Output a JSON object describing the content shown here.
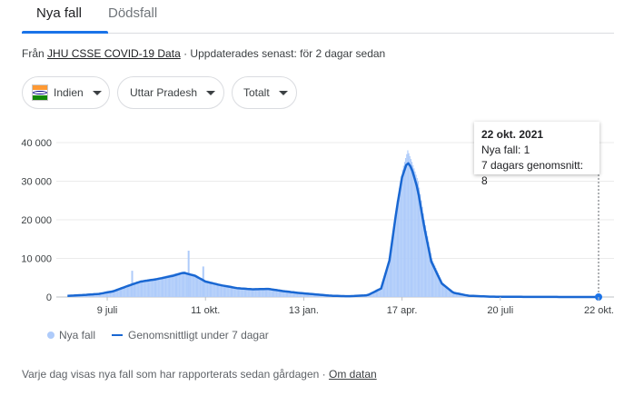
{
  "tabs": {
    "new_cases": "Nya fall",
    "deaths": "Dödsfall"
  },
  "source": {
    "prefix": "Från",
    "link": "JHU CSSE COVID-19 Data",
    "suffix": "· Uppdaterades senast: för 2 dagar sedan"
  },
  "filters": {
    "country": "Indien",
    "state": "Uttar Pradesh",
    "mode": "Totalt"
  },
  "tooltip": {
    "date": "22 okt. 2021",
    "new_cases": "Nya fall: 1",
    "avg": "7 dagars genomsnitt: 8"
  },
  "legend": {
    "bars": "Nya fall",
    "line": "Genomsnittligt under 7 dagar"
  },
  "footer": {
    "text": "Varje dag visas nya fall som har rapporterats sedan gårdagen ·",
    "link": "Om datan"
  },
  "colors": {
    "bars": "#aecbfa",
    "line": "#1967d2",
    "accent": "#1a73e8"
  },
  "chart_data": {
    "type": "bar",
    "x_ticks": [
      "9 juli",
      "11 okt.",
      "13 jan.",
      "17 apr.",
      "20 juli",
      "22 okt."
    ],
    "y_ticks": [
      "0",
      "10 000",
      "20 000",
      "30 000",
      "40 000"
    ],
    "ylim": [
      0,
      40000
    ],
    "series": [
      {
        "name": "Nya fall",
        "type": "bar",
        "points": [
          [
            "2020-06-01",
            300
          ],
          [
            "2020-06-15",
            500
          ],
          [
            "2020-07-01",
            900
          ],
          [
            "2020-07-15",
            1600
          ],
          [
            "2020-07-30",
            3200
          ],
          [
            "2020-08-10",
            4300
          ],
          [
            "2020-08-25",
            4900
          ],
          [
            "2020-09-10",
            6000
          ],
          [
            "2020-09-20",
            6600
          ],
          [
            "2020-10-01",
            5700
          ],
          [
            "2020-10-11",
            4200
          ],
          [
            "2020-10-25",
            3300
          ],
          [
            "2020-11-10",
            2400
          ],
          [
            "2020-11-25",
            2100
          ],
          [
            "2020-12-10",
            2200
          ],
          [
            "2020-12-25",
            1600
          ],
          [
            "2021-01-10",
            1000
          ],
          [
            "2021-01-25",
            700
          ],
          [
            "2021-02-10",
            300
          ],
          [
            "2021-02-25",
            200
          ],
          [
            "2021-03-15",
            500
          ],
          [
            "2021-03-28",
            2500
          ],
          [
            "2021-04-05",
            11000
          ],
          [
            "2021-04-12",
            25000
          ],
          [
            "2021-04-17",
            33000
          ],
          [
            "2021-04-22",
            38000
          ],
          [
            "2021-04-26",
            35000
          ],
          [
            "2021-05-02",
            30000
          ],
          [
            "2021-05-08",
            20000
          ],
          [
            "2021-05-15",
            10000
          ],
          [
            "2021-05-25",
            3800
          ],
          [
            "2021-06-05",
            1200
          ],
          [
            "2021-06-20",
            350
          ],
          [
            "2021-07-10",
            100
          ],
          [
            "2021-08-10",
            40
          ],
          [
            "2021-09-10",
            15
          ],
          [
            "2021-10-22",
            1
          ]
        ],
        "spikes": [
          [
            "2020-08-01",
            6800
          ],
          [
            "2020-09-24",
            12000
          ],
          [
            "2020-10-08",
            7900
          ]
        ]
      },
      {
        "name": "Genomsnittligt under 7 dagar",
        "type": "line",
        "points": [
          [
            "2020-06-01",
            300
          ],
          [
            "2020-06-15",
            500
          ],
          [
            "2020-07-01",
            800
          ],
          [
            "2020-07-15",
            1500
          ],
          [
            "2020-07-30",
            3000
          ],
          [
            "2020-08-10",
            4000
          ],
          [
            "2020-08-25",
            4600
          ],
          [
            "2020-09-10",
            5500
          ],
          [
            "2020-09-20",
            6300
          ],
          [
            "2020-10-01",
            5500
          ],
          [
            "2020-10-11",
            4000
          ],
          [
            "2020-10-25",
            3100
          ],
          [
            "2020-11-10",
            2300
          ],
          [
            "2020-11-25",
            2000
          ],
          [
            "2020-12-10",
            2100
          ],
          [
            "2020-12-25",
            1500
          ],
          [
            "2021-01-10",
            1000
          ],
          [
            "2021-01-25",
            650
          ],
          [
            "2021-02-10",
            300
          ],
          [
            "2021-02-25",
            200
          ],
          [
            "2021-03-15",
            450
          ],
          [
            "2021-03-28",
            2200
          ],
          [
            "2021-04-05",
            9500
          ],
          [
            "2021-04-12",
            23000
          ],
          [
            "2021-04-17",
            31000
          ],
          [
            "2021-04-22",
            35000
          ],
          [
            "2021-04-26",
            33500
          ],
          [
            "2021-05-02",
            28000
          ],
          [
            "2021-05-08",
            18500
          ],
          [
            "2021-05-15",
            9200
          ],
          [
            "2021-05-25",
            3500
          ],
          [
            "2021-06-05",
            1100
          ],
          [
            "2021-06-20",
            320
          ],
          [
            "2021-07-10",
            90
          ],
          [
            "2021-08-10",
            35
          ],
          [
            "2021-09-10",
            12
          ],
          [
            "2021-10-22",
            8
          ]
        ]
      }
    ]
  }
}
